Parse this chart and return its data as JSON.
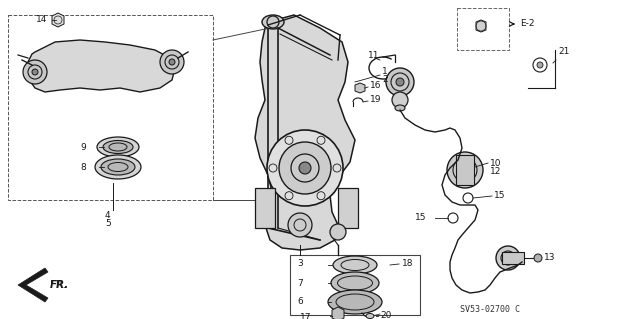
{
  "bg_color": "#ffffff",
  "line_color": "#1a1a1a",
  "footer": "SV53-02700 C",
  "fig_w": 6.4,
  "fig_h": 3.19,
  "dpi": 100
}
